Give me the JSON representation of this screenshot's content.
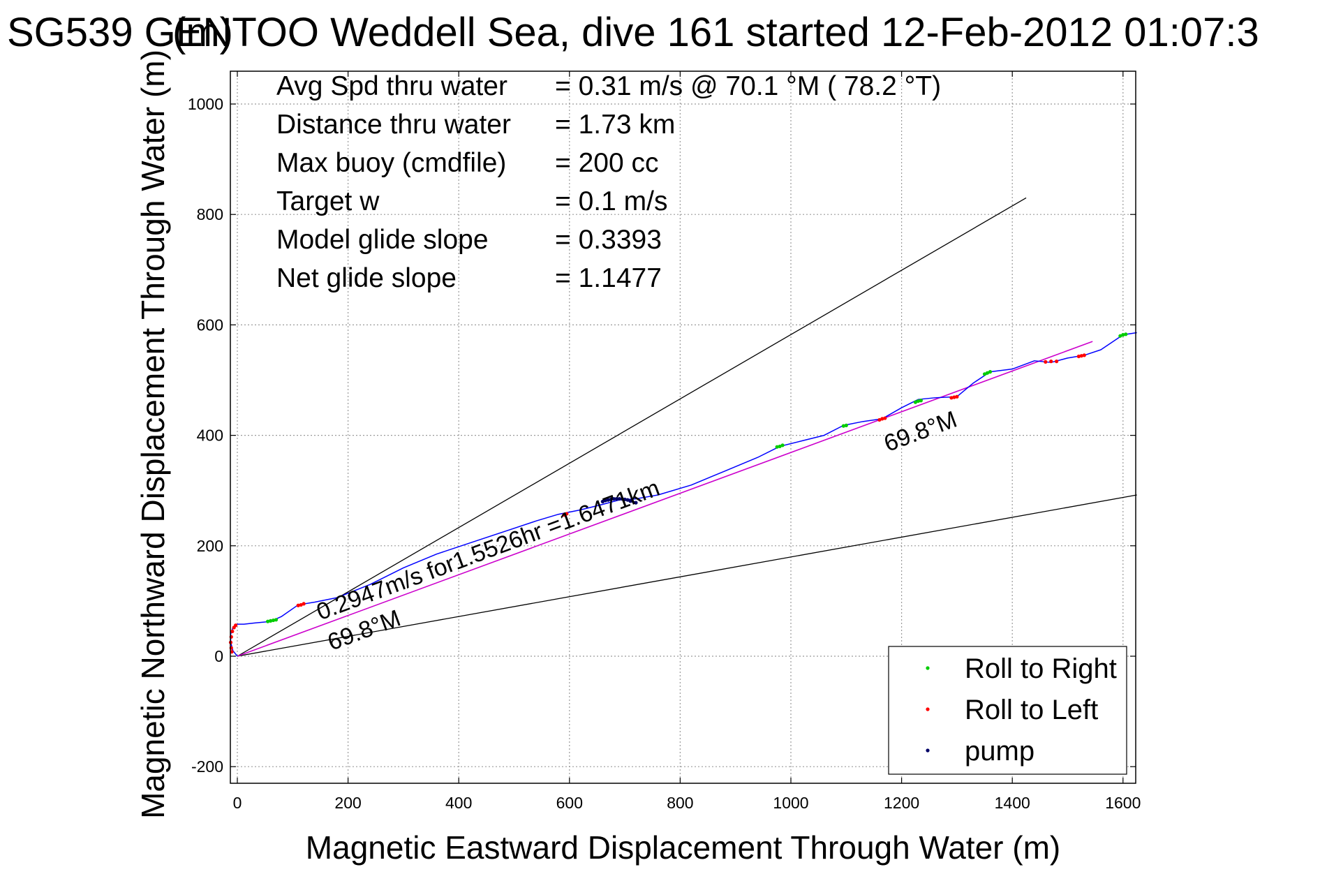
{
  "title": "SG539 GENTOO Weddell Sea, dive 161 started 12-Feb-2012 01:07:3",
  "title_overlap_fragment": "(m)",
  "chart_data": {
    "type": "line",
    "xlabel": "Magnetic Eastward Displacement Through Water (m)",
    "ylabel": "Magnetic Northward Displacement Through Water (m)",
    "xlim": [
      -10,
      1625
    ],
    "ylim": [
      -230,
      1060
    ],
    "x_ticks": [
      0,
      200,
      400,
      600,
      800,
      1000,
      1200,
      1400,
      1600
    ],
    "y_ticks": [
      -200,
      0,
      200,
      400,
      600,
      800,
      1000
    ],
    "grid": true,
    "legend_position": "bottom-right",
    "info_lines": [
      {
        "label": "Avg Spd thru water",
        "value": "=  0.31 m/s @  70.1 °M ( 78.2 °T)"
      },
      {
        "label": "Distance thru water",
        "value": "=  1.73 km"
      },
      {
        "label": "Max buoy (cmdfile)",
        "value": "= 200 cc"
      },
      {
        "label": "Target w",
        "value": "= 0.1 m/s"
      },
      {
        "label": "Model glide slope",
        "value": "= 0.3393"
      },
      {
        "label": "Net glide slope",
        "value": "= 1.1477"
      }
    ],
    "cone_lines": [
      {
        "x": [
          0,
          1425
        ],
        "y": [
          0,
          830
        ],
        "color": "#000000"
      },
      {
        "x": [
          0,
          1625
        ],
        "y": [
          0,
          292
        ],
        "color": "#000000"
      }
    ],
    "net_line": {
      "x": [
        0,
        1545
      ],
      "y": [
        0,
        570
      ],
      "color": "#cc00cc"
    },
    "track": {
      "color": "#0000ff",
      "x": [
        0,
        -8,
        -12,
        -12,
        -8,
        0,
        12,
        30,
        60,
        80,
        110,
        140,
        180,
        240,
        300,
        360,
        420,
        480,
        540,
        580,
        620,
        660,
        690,
        720,
        760,
        820,
        880,
        940,
        980,
        1020,
        1060,
        1095,
        1130,
        1165,
        1200,
        1230,
        1260,
        1300,
        1330,
        1360,
        1400,
        1440,
        1470,
        1500,
        1530,
        1560,
        1600,
        1625
      ],
      "y": [
        0,
        10,
        25,
        40,
        52,
        58,
        58,
        60,
        63,
        72,
        93,
        98,
        106,
        130,
        160,
        185,
        205,
        225,
        245,
        257,
        265,
        275,
        283,
        285,
        292,
        310,
        335,
        360,
        380,
        390,
        400,
        418,
        425,
        430,
        450,
        465,
        468,
        470,
        495,
        515,
        520,
        535,
        532,
        540,
        545,
        555,
        582,
        586
      ]
    },
    "series": [
      {
        "name": "Roll to Right",
        "color": "#00cc00",
        "marker": "dot",
        "x": [
          55,
          60,
          65,
          70,
          975,
          980,
          985,
          1095,
          1100,
          1225,
          1230,
          1235,
          1350,
          1355,
          1360,
          1595,
          1600,
          1605
        ],
        "y": [
          63,
          64,
          65,
          66,
          379,
          380,
          382,
          417,
          418,
          460,
          462,
          463,
          511,
          513,
          515,
          580,
          582,
          583
        ]
      },
      {
        "name": "Roll to Left",
        "color": "#ff0000",
        "marker": "dot",
        "x": [
          -10,
          -11,
          -12,
          -11,
          -9,
          -6,
          -3,
          110,
          115,
          120,
          590,
          595,
          1160,
          1165,
          1170,
          1290,
          1295,
          1300,
          1460,
          1470,
          1480,
          1520,
          1525,
          1530
        ],
        "y": [
          8,
          15,
          25,
          35,
          45,
          52,
          56,
          92,
          93,
          95,
          256,
          258,
          428,
          430,
          431,
          468,
          469,
          470,
          533,
          534,
          534,
          543,
          544,
          545
        ]
      },
      {
        "name": "pump",
        "color": "#000066",
        "marker": "dot",
        "x": [
          660,
          665,
          670,
          675,
          680,
          685,
          690,
          695,
          700,
          705,
          710,
          720
        ],
        "y": [
          280,
          282,
          283,
          284,
          285,
          285,
          285,
          285,
          284,
          283,
          281,
          278
        ]
      }
    ],
    "annotations": [
      {
        "text": "0.2947m/s for1.5526hr =1.6471km",
        "x": 150,
        "y": 65,
        "rotation_deg": -20.3
      },
      {
        "text": "69.8°M",
        "x": 170,
        "y": 10,
        "rotation_deg": -20.3
      },
      {
        "text": "69.8°M",
        "x": 1175,
        "y": 370,
        "rotation_deg": -20.3
      }
    ]
  }
}
